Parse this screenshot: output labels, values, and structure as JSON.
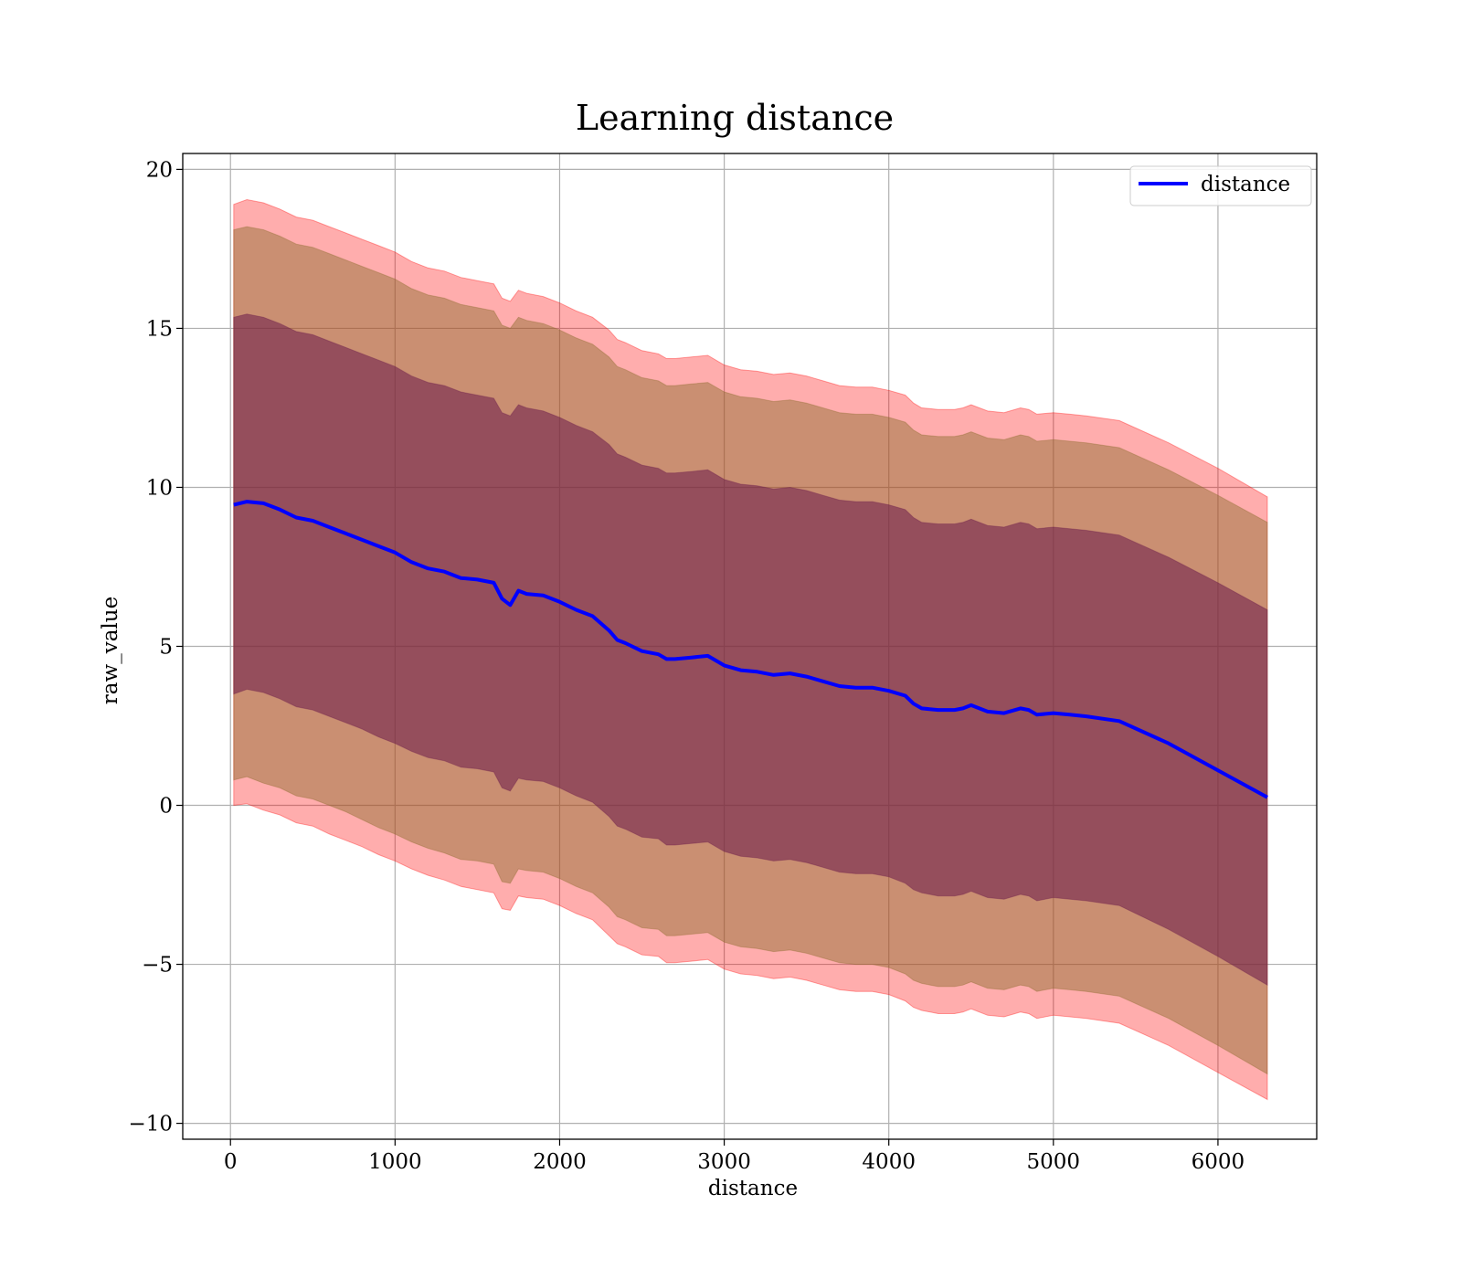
{
  "chart_data": {
    "type": "area",
    "title": "Learning distance",
    "xlabel": "distance",
    "ylabel": "raw_value",
    "xlim": [
      -290,
      6600
    ],
    "ylim": [
      -10.5,
      20.5
    ],
    "xticks": [
      0,
      1000,
      2000,
      3000,
      4000,
      5000,
      6000
    ],
    "xtick_labels": [
      "0",
      "1000",
      "2000",
      "3000",
      "4000",
      "5000",
      "6000"
    ],
    "yticks": [
      -10,
      -5,
      0,
      5,
      10,
      15,
      20
    ],
    "ytick_labels": [
      "−10",
      "−5",
      "0",
      "5",
      "10",
      "15",
      "20"
    ],
    "grid": true,
    "legend_position": "top-right",
    "x": [
      20,
      100,
      200,
      300,
      400,
      500,
      600,
      700,
      800,
      900,
      1000,
      1100,
      1200,
      1300,
      1400,
      1500,
      1600,
      1650,
      1700,
      1750,
      1800,
      1900,
      2000,
      2100,
      2200,
      2300,
      2350,
      2400,
      2500,
      2600,
      2650,
      2700,
      2800,
      2900,
      3000,
      3100,
      3200,
      3300,
      3400,
      3500,
      3600,
      3700,
      3800,
      3900,
      4000,
      4100,
      4150,
      4200,
      4300,
      4400,
      4450,
      4500,
      4600,
      4700,
      4800,
      4850,
      4900,
      5000,
      5100,
      5200,
      5400,
      5700,
      6000,
      6300
    ],
    "series": [
      {
        "name": "distance",
        "color": "#0000ff",
        "values": [
          9.45,
          9.55,
          9.5,
          9.3,
          9.05,
          8.95,
          8.75,
          8.55,
          8.35,
          8.15,
          7.95,
          7.65,
          7.45,
          7.35,
          7.15,
          7.1,
          7.0,
          6.5,
          6.3,
          6.75,
          6.65,
          6.6,
          6.4,
          6.15,
          5.95,
          5.5,
          5.2,
          5.1,
          4.85,
          4.75,
          4.6,
          4.6,
          4.65,
          4.7,
          4.4,
          4.25,
          4.2,
          4.1,
          4.15,
          4.05,
          3.9,
          3.75,
          3.7,
          3.7,
          3.6,
          3.45,
          3.2,
          3.05,
          3.0,
          3.0,
          3.05,
          3.15,
          2.95,
          2.9,
          3.05,
          3.0,
          2.85,
          2.9,
          2.85,
          2.8,
          2.65,
          1.95,
          1.1,
          0.25
        ]
      }
    ],
    "bands": [
      {
        "color": "#ff0000",
        "opacity": 0.32,
        "lower": [
          0.0,
          0.05,
          -0.15,
          -0.3,
          -0.55,
          -0.65,
          -0.9,
          -1.1,
          -1.3,
          -1.55,
          -1.75,
          -2.0,
          -2.2,
          -2.35,
          -2.55,
          -2.65,
          -2.75,
          -3.25,
          -3.3,
          -2.85,
          -2.9,
          -2.95,
          -3.15,
          -3.4,
          -3.6,
          -4.1,
          -4.35,
          -4.45,
          -4.7,
          -4.75,
          -4.95,
          -4.95,
          -4.9,
          -4.85,
          -5.15,
          -5.3,
          -5.35,
          -5.45,
          -5.4,
          -5.5,
          -5.65,
          -5.8,
          -5.85,
          -5.85,
          -5.95,
          -6.15,
          -6.35,
          -6.45,
          -6.55,
          -6.55,
          -6.5,
          -6.4,
          -6.6,
          -6.65,
          -6.5,
          -6.55,
          -6.7,
          -6.6,
          -6.65,
          -6.7,
          -6.85,
          -7.55,
          -8.4,
          -9.25
        ],
        "upper": [
          18.9,
          19.05,
          18.95,
          18.75,
          18.5,
          18.4,
          18.2,
          18.0,
          17.8,
          17.6,
          17.4,
          17.1,
          16.9,
          16.8,
          16.6,
          16.5,
          16.4,
          15.95,
          15.85,
          16.2,
          16.1,
          16.0,
          15.8,
          15.55,
          15.35,
          14.95,
          14.65,
          14.55,
          14.3,
          14.2,
          14.05,
          14.05,
          14.1,
          14.15,
          13.85,
          13.7,
          13.65,
          13.55,
          13.6,
          13.5,
          13.35,
          13.2,
          13.15,
          13.15,
          13.05,
          12.9,
          12.65,
          12.5,
          12.45,
          12.45,
          12.5,
          12.6,
          12.4,
          12.35,
          12.5,
          12.45,
          12.3,
          12.35,
          12.3,
          12.25,
          12.1,
          11.4,
          10.6,
          9.7
        ]
      },
      {
        "color": "#8a6a2a",
        "opacity": 0.45,
        "lower": [
          0.8,
          0.9,
          0.7,
          0.55,
          0.3,
          0.2,
          0.0,
          -0.2,
          -0.45,
          -0.7,
          -0.9,
          -1.15,
          -1.35,
          -1.5,
          -1.7,
          -1.75,
          -1.85,
          -2.4,
          -2.45,
          -2.0,
          -2.05,
          -2.1,
          -2.3,
          -2.55,
          -2.75,
          -3.2,
          -3.5,
          -3.6,
          -3.85,
          -3.9,
          -4.1,
          -4.1,
          -4.05,
          -4.0,
          -4.3,
          -4.45,
          -4.5,
          -4.6,
          -4.55,
          -4.65,
          -4.8,
          -4.95,
          -5.0,
          -5.0,
          -5.1,
          -5.3,
          -5.5,
          -5.6,
          -5.7,
          -5.7,
          -5.65,
          -5.55,
          -5.75,
          -5.8,
          -5.65,
          -5.7,
          -5.85,
          -5.75,
          -5.8,
          -5.85,
          -6.0,
          -6.7,
          -7.55,
          -8.45
        ],
        "upper": [
          18.1,
          18.2,
          18.1,
          17.9,
          17.65,
          17.55,
          17.35,
          17.15,
          16.95,
          16.75,
          16.55,
          16.25,
          16.05,
          15.95,
          15.75,
          15.65,
          15.55,
          15.1,
          15.0,
          15.35,
          15.25,
          15.15,
          14.95,
          14.7,
          14.5,
          14.1,
          13.8,
          13.7,
          13.45,
          13.35,
          13.2,
          13.2,
          13.25,
          13.3,
          13.0,
          12.85,
          12.8,
          12.7,
          12.75,
          12.65,
          12.5,
          12.35,
          12.3,
          12.3,
          12.2,
          12.05,
          11.8,
          11.65,
          11.6,
          11.6,
          11.65,
          11.75,
          11.55,
          11.5,
          11.65,
          11.6,
          11.45,
          11.5,
          11.45,
          11.4,
          11.25,
          10.55,
          9.75,
          8.9
        ]
      },
      {
        "color": "#6a1a4a",
        "opacity": 0.55,
        "lower": [
          3.5,
          3.65,
          3.55,
          3.35,
          3.1,
          3.0,
          2.8,
          2.6,
          2.4,
          2.15,
          1.95,
          1.7,
          1.5,
          1.4,
          1.2,
          1.15,
          1.05,
          0.55,
          0.45,
          0.85,
          0.8,
          0.75,
          0.55,
          0.3,
          0.1,
          -0.35,
          -0.65,
          -0.75,
          -1.0,
          -1.05,
          -1.25,
          -1.25,
          -1.2,
          -1.15,
          -1.45,
          -1.6,
          -1.65,
          -1.75,
          -1.7,
          -1.8,
          -1.95,
          -2.1,
          -2.15,
          -2.15,
          -2.25,
          -2.45,
          -2.65,
          -2.75,
          -2.85,
          -2.85,
          -2.8,
          -2.7,
          -2.9,
          -2.95,
          -2.8,
          -2.85,
          -3.0,
          -2.9,
          -2.95,
          -3.0,
          -3.15,
          -3.9,
          -4.75,
          -5.65
        ],
        "upper": [
          15.35,
          15.45,
          15.35,
          15.15,
          14.9,
          14.8,
          14.6,
          14.4,
          14.2,
          14.0,
          13.8,
          13.5,
          13.3,
          13.2,
          13.0,
          12.9,
          12.8,
          12.35,
          12.25,
          12.6,
          12.5,
          12.4,
          12.2,
          11.95,
          11.75,
          11.35,
          11.05,
          10.95,
          10.7,
          10.6,
          10.45,
          10.45,
          10.5,
          10.55,
          10.25,
          10.1,
          10.05,
          9.95,
          10.0,
          9.9,
          9.75,
          9.6,
          9.55,
          9.55,
          9.45,
          9.3,
          9.05,
          8.9,
          8.85,
          8.85,
          8.9,
          9.0,
          8.8,
          8.75,
          8.9,
          8.85,
          8.7,
          8.75,
          8.7,
          8.65,
          8.5,
          7.8,
          7.0,
          6.15
        ]
      }
    ]
  }
}
